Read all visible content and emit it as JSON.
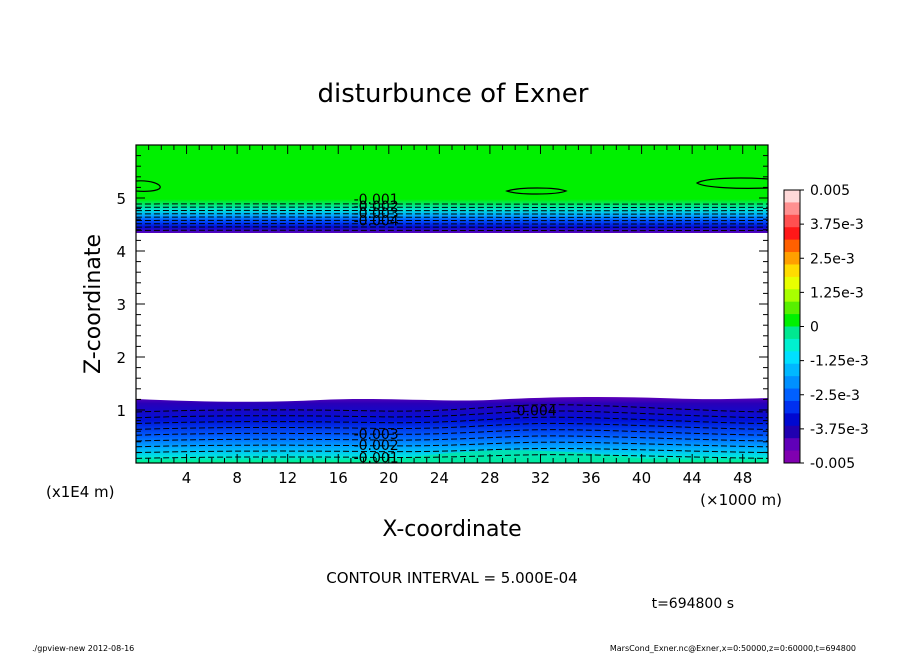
{
  "chart_data": {
    "type": "contour",
    "title": "disturbunce of Exner",
    "xlabel": "X-coordinate",
    "ylabel": "Z-coordinate",
    "x_unit": "(×1000 m)",
    "y_unit": "(x1E4 m)",
    "xlim": [
      0,
      50
    ],
    "ylim": [
      0,
      6
    ],
    "x_ticks": [
      "4",
      "8",
      "12",
      "16",
      "20",
      "24",
      "28",
      "32",
      "36",
      "40",
      "44",
      "48"
    ],
    "y_ticks": [
      "1",
      "2",
      "3",
      "4",
      "5"
    ],
    "x_tick_values": [
      4,
      8,
      12,
      16,
      20,
      24,
      28,
      32,
      36,
      40,
      44,
      48
    ],
    "y_tick_values": [
      1,
      2,
      3,
      4,
      5
    ],
    "colorbar": {
      "range": [
        -0.005,
        0.005
      ],
      "labels": [
        "0.005",
        "3.75e-3",
        "2.5e-3",
        "1.25e-3",
        "0",
        "-1.25e-3",
        "-2.5e-3",
        "-3.75e-3",
        "-0.005"
      ],
      "colors": [
        "#ffd8d8",
        "#ff9090",
        "#ff5050",
        "#ff1818",
        "#ff6000",
        "#ffa000",
        "#ffdc00",
        "#e8ff00",
        "#a8ff00",
        "#58f000",
        "#00f000",
        "#00e890",
        "#00f0d0",
        "#00e0ff",
        "#00b8ff",
        "#0090ff",
        "#0060ff",
        "#0030f0",
        "#0008d0",
        "#2000b0",
        "#6000b8",
        "#8000b0"
      ]
    },
    "contour_labels": [
      {
        "text": "-0.001",
        "x": 19.0,
        "z": 4.98
      },
      {
        "text": "-0.002",
        "x": 19.0,
        "z": 4.85
      },
      {
        "text": "-0.003",
        "x": 19.0,
        "z": 4.72
      },
      {
        "text": "-0.004",
        "x": 19.0,
        "z": 4.58
      },
      {
        "text": "-0.004",
        "x": 31.5,
        "z": 0.99
      },
      {
        "text": "-0.003",
        "x": 19.0,
        "z": 0.55
      },
      {
        "text": "-0.002",
        "x": 19.0,
        "z": 0.34
      },
      {
        "text": "-0.001",
        "x": 19.0,
        "z": 0.1
      }
    ],
    "contour_interval_text": "CONTOUR INTERVAL = 5.000E-04",
    "time_text": "t=694800 s"
  },
  "footer": {
    "left": "./gpview-new  2012-08-16",
    "right": "MarsCond_Exner.nc@Exner,x=0:50000,z=0:60000,t=694800"
  }
}
